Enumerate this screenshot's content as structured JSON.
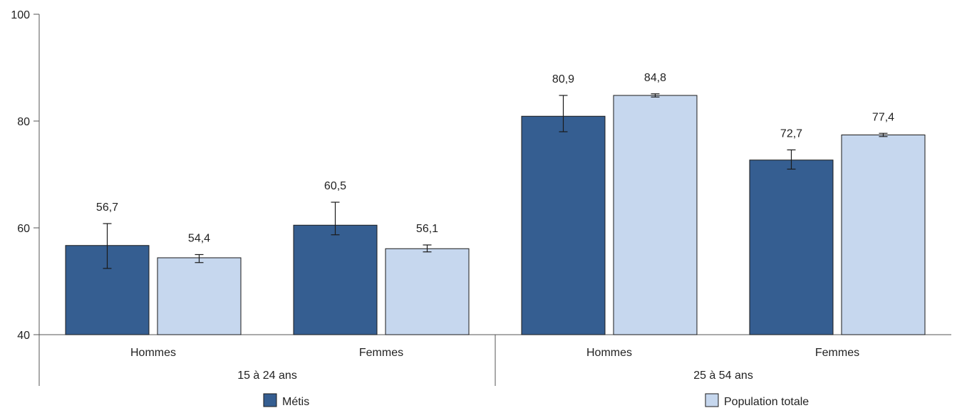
{
  "chart_data": {
    "type": "bar",
    "title": "",
    "xlabel": "",
    "ylabel": "",
    "ylim": [
      40,
      100
    ],
    "yticks": [
      "40",
      "60",
      "80",
      "100"
    ],
    "grid": false,
    "legend_placement": "bottom",
    "groups": [
      {
        "label": "15 à 24 ans",
        "categories": [
          "Hommes",
          "Femmes"
        ]
      },
      {
        "label": "25 à 54 ans",
        "categories": [
          "Hommes",
          "Femmes"
        ]
      }
    ],
    "series": [
      {
        "name": "Métis",
        "color": "#355e91",
        "values": [
          56.7,
          60.5,
          80.9,
          72.7
        ],
        "labels": [
          "56,7",
          "60,5",
          "80,9",
          "72,7"
        ],
        "error_low": [
          52.4,
          58.7,
          78.0,
          71.0
        ],
        "error_high": [
          60.8,
          64.8,
          84.8,
          74.6
        ]
      },
      {
        "name": "Population totale",
        "color": "#c6d7ee",
        "values": [
          54.4,
          56.1,
          84.8,
          77.4
        ],
        "labels": [
          "54,4",
          "56,1",
          "84,8",
          "77,4"
        ],
        "error_low": [
          53.5,
          55.5,
          84.5,
          77.1
        ],
        "error_high": [
          55.0,
          56.8,
          85.1,
          77.7
        ]
      }
    ]
  }
}
